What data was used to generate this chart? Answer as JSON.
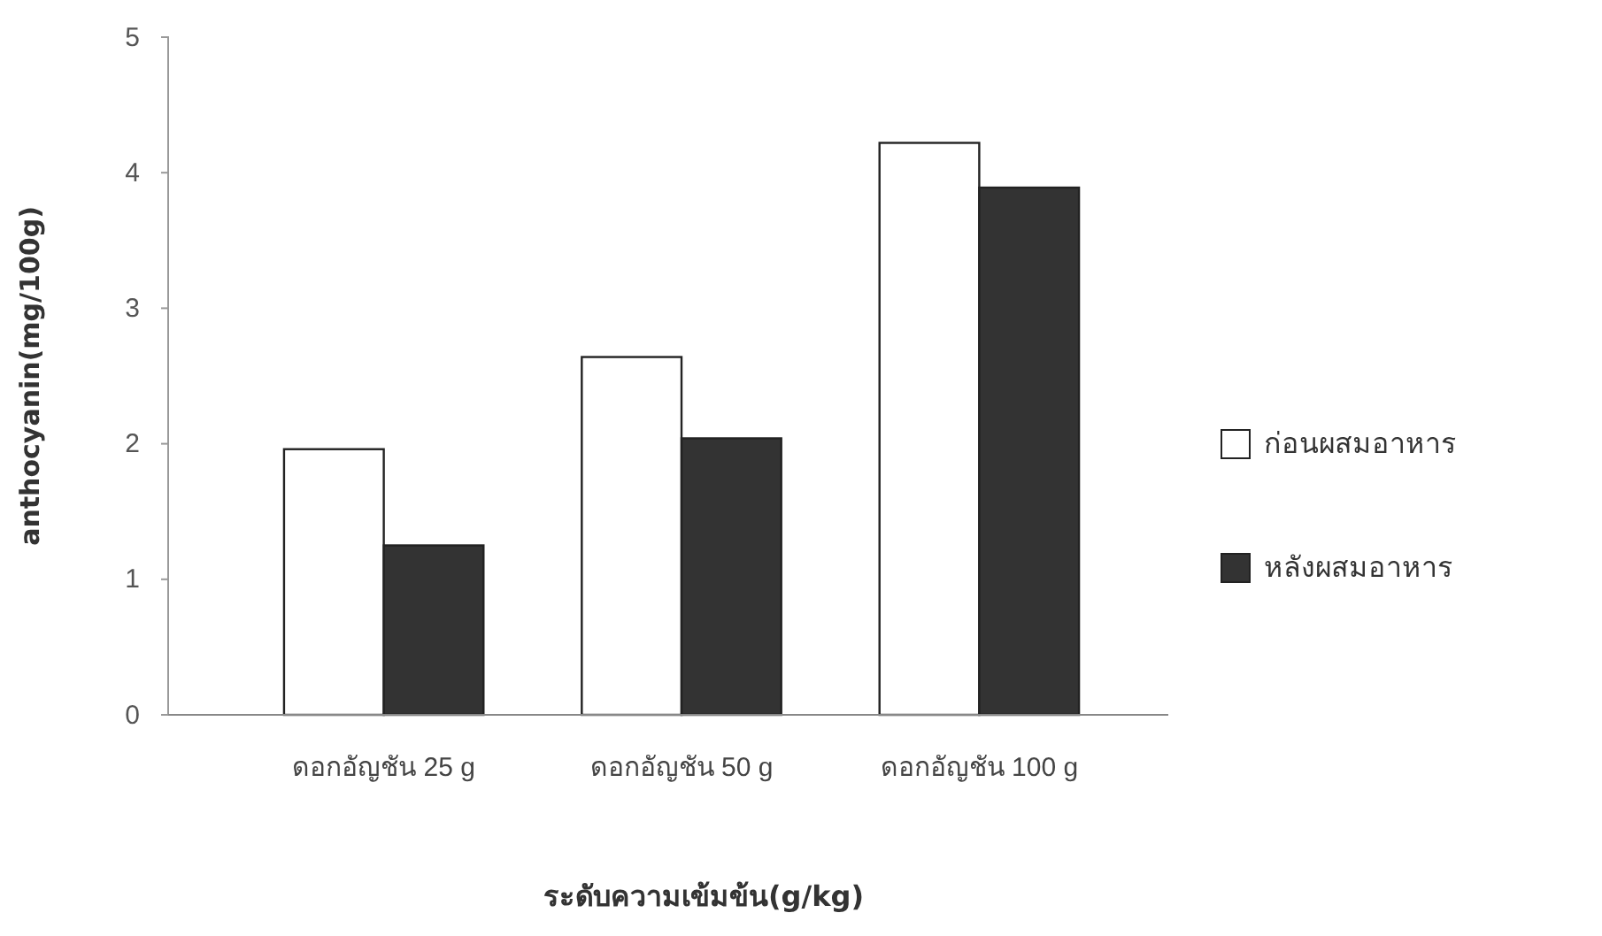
{
  "chart_data": {
    "type": "bar",
    "xlabel": "ระดับความเข้มข้น(g/kg)",
    "ylabel": "anthocyanin(mg/100g)",
    "categories": [
      "ดอกอัญชัน 25 g",
      "ดอกอัญชัน 50 g",
      "ดอกอัญชัน 100 g"
    ],
    "series": [
      {
        "name": "ก่อนผสมอาหาร",
        "color": "#ffffff",
        "values": [
          1.96,
          2.64,
          4.22
        ]
      },
      {
        "name": "หลังผสมอาหาร",
        "color": "#333333",
        "values": [
          1.25,
          2.04,
          3.89
        ]
      }
    ],
    "ylim": [
      0,
      5
    ],
    "yticks": [
      0,
      1,
      2,
      3,
      4,
      5
    ],
    "grid": false,
    "legend": "right"
  }
}
